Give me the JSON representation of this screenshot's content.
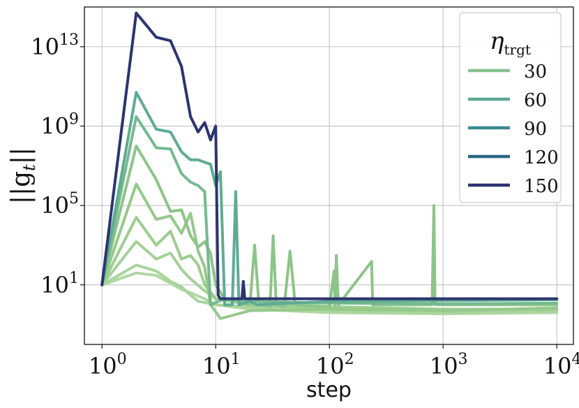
{
  "chart_data": {
    "type": "line",
    "xlabel": "step",
    "ylabel": "||g_t||",
    "x_scale": "log",
    "y_scale": "log",
    "xlim": [
      0.7,
      14000
    ],
    "ylim": [
      0.01,
      1000000000000000
    ],
    "grid": true,
    "legend_placement": "top-right",
    "legend_title": "η_trgt",
    "x_ticks": [
      {
        "value": 1,
        "base": "10",
        "exp": "0"
      },
      {
        "value": 10,
        "base": "10",
        "exp": "1"
      },
      {
        "value": 100,
        "base": "10",
        "exp": "2"
      },
      {
        "value": 1000,
        "base": "10",
        "exp": "3"
      },
      {
        "value": 10000,
        "base": "10",
        "exp": "4"
      }
    ],
    "y_ticks": [
      {
        "value": 10,
        "base": "10",
        "exp": "1"
      },
      {
        "value": 100000,
        "base": "10",
        "exp": "5"
      },
      {
        "value": 1000000000,
        "base": "10",
        "exp": "9"
      },
      {
        "value": 10000000000000,
        "base": "10",
        "exp": "13"
      }
    ],
    "legend": [
      {
        "label": "30",
        "color": "#86c28e"
      },
      {
        "label": "60",
        "color": "#5aa896"
      },
      {
        "label": "90",
        "color": "#3b8a92"
      },
      {
        "label": "120",
        "color": "#2a6683"
      },
      {
        "label": "150",
        "color": "#2c3470"
      }
    ],
    "series": [
      {
        "color": "#b0d7a3",
        "points": [
          [
            1,
            10
          ],
          [
            2,
            40
          ],
          [
            3,
            30
          ],
          [
            4,
            12
          ],
          [
            5,
            6
          ],
          [
            6,
            4
          ],
          [
            8,
            2
          ],
          [
            10,
            1
          ],
          [
            20,
            0.6
          ],
          [
            100,
            0.4
          ],
          [
            1000,
            0.35
          ],
          [
            10000,
            0.4
          ]
        ]
      },
      {
        "color": "#a9d49c",
        "points": [
          [
            1,
            10
          ],
          [
            2,
            100
          ],
          [
            3,
            50
          ],
          [
            4,
            15
          ],
          [
            5,
            8
          ],
          [
            6,
            3
          ],
          [
            7,
            1.5
          ],
          [
            10,
            1
          ],
          [
            30,
            0.7
          ],
          [
            100,
            0.5
          ],
          [
            1000,
            0.4
          ],
          [
            10000,
            0.5
          ]
        ]
      },
      {
        "color": "#a3d196",
        "points": [
          [
            1,
            10
          ],
          [
            2,
            1500
          ],
          [
            3,
            200
          ],
          [
            4,
            400
          ],
          [
            5,
            60
          ],
          [
            6,
            20
          ],
          [
            8,
            5
          ],
          [
            10,
            2
          ],
          [
            20,
            1
          ],
          [
            100,
            0.7
          ],
          [
            1000,
            0.5
          ],
          [
            10000,
            0.6
          ]
        ]
      },
      {
        "color": "#9ccd90",
        "points": [
          [
            1,
            10
          ],
          [
            2,
            25000
          ],
          [
            3,
            1000
          ],
          [
            4,
            5000
          ],
          [
            5,
            200
          ],
          [
            6,
            300
          ],
          [
            7,
            100
          ],
          [
            8,
            10
          ],
          [
            10,
            2
          ],
          [
            20,
            1
          ],
          [
            100,
            0.8
          ],
          [
            1000,
            0.6
          ],
          [
            10000,
            0.6
          ]
        ]
      },
      {
        "color": "#95c98a",
        "points": [
          [
            1,
            10
          ],
          [
            2,
            1200000
          ],
          [
            3,
            20000
          ],
          [
            4,
            30000
          ],
          [
            5,
            4000
          ],
          [
            6,
            40000
          ],
          [
            7,
            500
          ],
          [
            8,
            80
          ],
          [
            9,
            1
          ],
          [
            11,
            0.2
          ],
          [
            20,
            0.5
          ],
          [
            100,
            0.6
          ],
          [
            1000,
            0.5
          ],
          [
            10000,
            0.7
          ]
        ]
      },
      {
        "color": "#8dc488",
        "points": [
          [
            1,
            10
          ],
          [
            2,
            100000000
          ],
          [
            3,
            2000000
          ],
          [
            4,
            50000
          ],
          [
            5,
            60000
          ],
          [
            6,
            3000
          ],
          [
            7,
            800
          ],
          [
            8,
            1500
          ],
          [
            9,
            400
          ],
          [
            10,
            10
          ],
          [
            12,
            2
          ],
          [
            20,
            1
          ],
          [
            22,
            1000
          ],
          [
            24,
            1
          ],
          [
            30,
            0.8
          ],
          [
            32,
            3000
          ],
          [
            34,
            1
          ],
          [
            40,
            0.8
          ],
          [
            45,
            500
          ],
          [
            50,
            1
          ],
          [
            100,
            0.8
          ],
          [
            110,
            50
          ],
          [
            112,
            1
          ],
          [
            115,
            300
          ],
          [
            120,
            1
          ],
          [
            235,
            150
          ],
          [
            240,
            1
          ],
          [
            800,
            1
          ],
          [
            830,
            100000
          ],
          [
            850,
            1
          ],
          [
            10000,
            1
          ]
        ]
      },
      {
        "color": "#75b990",
        "points": [
          [
            1,
            10
          ],
          [
            2,
            3000000000
          ],
          [
            3,
            80000000
          ],
          [
            4,
            70000000
          ],
          [
            5,
            4000000
          ],
          [
            6,
            1500000
          ],
          [
            7,
            1000000
          ],
          [
            8,
            500000
          ],
          [
            9,
            1
          ],
          [
            12,
            2
          ],
          [
            20,
            1.5
          ],
          [
            100,
            1.2
          ],
          [
            1000,
            1.1
          ],
          [
            10000,
            1.2
          ]
        ]
      },
      {
        "color": "#5fab94",
        "points": [
          [
            1,
            10
          ],
          [
            2,
            50000000000
          ],
          [
            3,
            700000000
          ],
          [
            4,
            500000000
          ],
          [
            5,
            50000000
          ],
          [
            6,
            20000000
          ],
          [
            7,
            20000000
          ],
          [
            8,
            15000000
          ],
          [
            9,
            12000000
          ],
          [
            10,
            1000000
          ],
          [
            11,
            5000000
          ],
          [
            12,
            1
          ],
          [
            14,
            1
          ],
          [
            15,
            500000
          ],
          [
            16,
            1
          ],
          [
            20,
            1.5
          ],
          [
            23,
            1
          ],
          [
            100,
            1.5
          ],
          [
            1000,
            1.6
          ],
          [
            10000,
            1.8
          ]
        ]
      },
      {
        "color": "#2c3470",
        "points": [
          [
            1,
            10
          ],
          [
            2,
            500000000000000
          ],
          [
            3,
            30000000000000
          ],
          [
            4,
            20000000000000
          ],
          [
            5,
            1000000000000
          ],
          [
            6,
            3000000000
          ],
          [
            7,
            500000000
          ],
          [
            8,
            1500000000
          ],
          [
            9,
            200000000
          ],
          [
            10,
            1000000000
          ],
          [
            10.5,
            3
          ],
          [
            11,
            2
          ],
          [
            15,
            2
          ],
          [
            17,
            2
          ],
          [
            17.5,
            15
          ],
          [
            18,
            2
          ],
          [
            100,
            2
          ],
          [
            1000,
            2
          ],
          [
            10000,
            2
          ]
        ]
      }
    ]
  }
}
